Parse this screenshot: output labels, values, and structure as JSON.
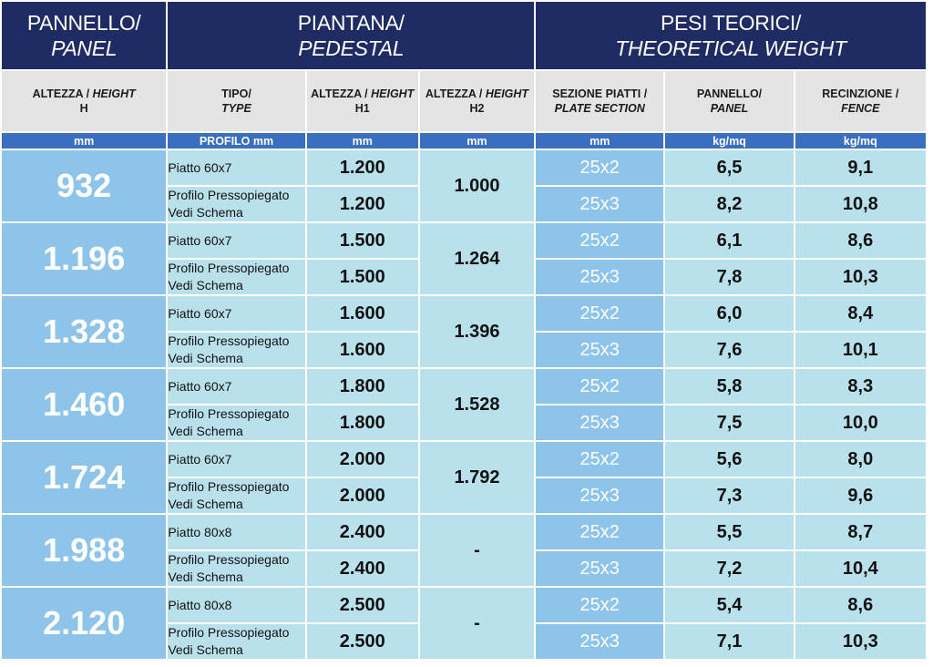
{
  "header": {
    "panel": {
      "it_label": "PANNELLO/",
      "en_label": "PANEL"
    },
    "pedestal": {
      "it_label": "PIANTANA/",
      "en_label": "PEDESTAL"
    },
    "weights": {
      "it_label": "PESI TEORICI/",
      "en_label": "THEORETICAL WEIGHT"
    }
  },
  "columns": [
    {
      "it": "ALTEZZA / ",
      "en": "HEIGHT",
      "sym": "H",
      "unit": "mm"
    },
    {
      "it": "TIPO/",
      "en": "TYPE",
      "sym": "",
      "unit": "PROFILO mm"
    },
    {
      "it": "ALTEZZA / ",
      "en": "HEIGHT",
      "sym": "H1",
      "unit": "mm"
    },
    {
      "it": "ALTEZZA / ",
      "en": "HEIGHT",
      "sym": "H2",
      "unit": "mm"
    },
    {
      "it": "SEZIONE PIATTI /",
      "en": "PLATE SECTION",
      "sym": "",
      "unit": "mm"
    },
    {
      "it": "PANNELLO/",
      "en": "PANEL",
      "sym": "",
      "unit": "kg/mq"
    },
    {
      "it": "RECINZIONE /",
      "en": "FENCE",
      "sym": "",
      "unit": "kg/mq"
    }
  ],
  "rows": [
    {
      "h": "932",
      "h2": "1.000",
      "a": {
        "type": "Piatto 60x7",
        "h1": "1.200",
        "sec": "25x2",
        "panel": "6,5",
        "fence": "9,1"
      },
      "b": {
        "type1": "Profilo Pressopiegato",
        "type2": "Vedi Schema",
        "h1": "1.200",
        "sec": "25x3",
        "panel": "8,2",
        "fence": "10,8"
      }
    },
    {
      "h": "1.196",
      "h2": "1.264",
      "a": {
        "type": "Piatto 60x7",
        "h1": "1.500",
        "sec": "25x2",
        "panel": "6,1",
        "fence": "8,6"
      },
      "b": {
        "type1": "Profilo Pressopiegato",
        "type2": "Vedi Schema",
        "h1": "1.500",
        "sec": "25x3",
        "panel": "7,8",
        "fence": "10,3"
      }
    },
    {
      "h": "1.328",
      "h2": "1.396",
      "a": {
        "type": "Piatto 60x7",
        "h1": "1.600",
        "sec": "25x2",
        "panel": "6,0",
        "fence": "8,4"
      },
      "b": {
        "type1": "Profilo Pressopiegato",
        "type2": "Vedi Schema",
        "h1": "1.600",
        "sec": "25x3",
        "panel": "7,6",
        "fence": "10,1"
      }
    },
    {
      "h": "1.460",
      "h2": "1.528",
      "a": {
        "type": "Piatto 60x7",
        "h1": "1.800",
        "sec": "25x2",
        "panel": "5,8",
        "fence": "8,3"
      },
      "b": {
        "type1": "Profilo Pressopiegato",
        "type2": "Vedi Schema",
        "h1": "1.800",
        "sec": "25x3",
        "panel": "7,5",
        "fence": "10,0"
      }
    },
    {
      "h": "1.724",
      "h2": "1.792",
      "a": {
        "type": "Piatto 60x7",
        "h1": "2.000",
        "sec": "25x2",
        "panel": "5,6",
        "fence": "8,0"
      },
      "b": {
        "type1": "Profilo Pressopiegato",
        "type2": "Vedi Schema",
        "h1": "2.000",
        "sec": "25x3",
        "panel": "7,3",
        "fence": "9,6"
      }
    },
    {
      "h": "1.988",
      "h2": "-",
      "a": {
        "type": "Piatto 80x8",
        "h1": "2.400",
        "sec": "25x2",
        "panel": "5,5",
        "fence": "8,7"
      },
      "b": {
        "type1": "Profilo Pressopiegato",
        "type2": "Vedi Schema",
        "h1": "2.400",
        "sec": "25x3",
        "panel": "7,2",
        "fence": "10,4"
      }
    },
    {
      "h": "2.120",
      "h2": "-",
      "a": {
        "type": "Piatto 80x8",
        "h1": "2.500",
        "sec": "25x2",
        "panel": "5,4",
        "fence": "8,6"
      },
      "b": {
        "type1": "Profilo Pressopiegato",
        "type2": "Vedi Schema",
        "h1": "2.500",
        "sec": "25x3",
        "panel": "7,1",
        "fence": "10,3"
      }
    }
  ]
}
